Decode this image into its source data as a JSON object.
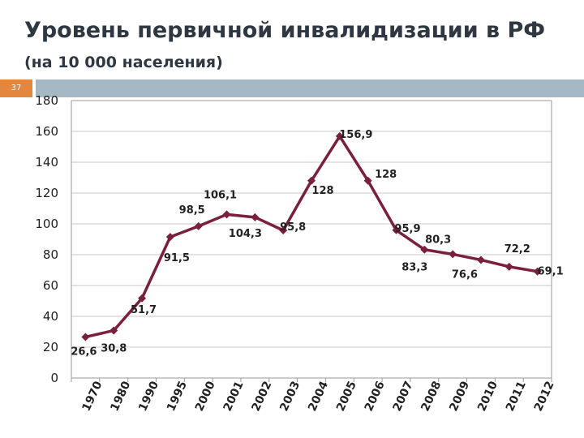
{
  "slide": {
    "title": "Уровень первичной инвалидизации в РФ",
    "subtitle": "(на 10 000 населения)",
    "slide_number": "37",
    "accent_color": "#e3873f",
    "bar_color": "#a6b8c4"
  },
  "chart_data": {
    "type": "line",
    "title": "",
    "xlabel": "",
    "ylabel": "",
    "ylim": [
      0,
      180
    ],
    "yticks": [
      0,
      20,
      40,
      60,
      80,
      100,
      120,
      140,
      160,
      180
    ],
    "grid": true,
    "legend": "none",
    "line_color": "#7a1f3d",
    "categories": [
      "1970",
      "1980",
      "1990",
      "1995",
      "2000",
      "2001",
      "2002",
      "2003",
      "2004",
      "2005",
      "2006",
      "2007",
      "2008",
      "2009",
      "2010",
      "2011",
      "2012"
    ],
    "series": [
      {
        "values": [
          26.6,
          30.8,
          51.7,
          91.5,
          98.5,
          106.1,
          104.3,
          95.8,
          128,
          156.9,
          128,
          95.9,
          83.3,
          80.3,
          76.6,
          72.2,
          69.1
        ],
        "labels": [
          "26,6",
          "30,8",
          "51,7",
          "91,5",
          "98,5",
          "106,1",
          "104,3",
          "95,8",
          "128",
          "156,9",
          "128",
          "95,9",
          "83,3",
          "80,3",
          "76,6",
          "72,2",
          "69,1"
        ]
      }
    ]
  }
}
